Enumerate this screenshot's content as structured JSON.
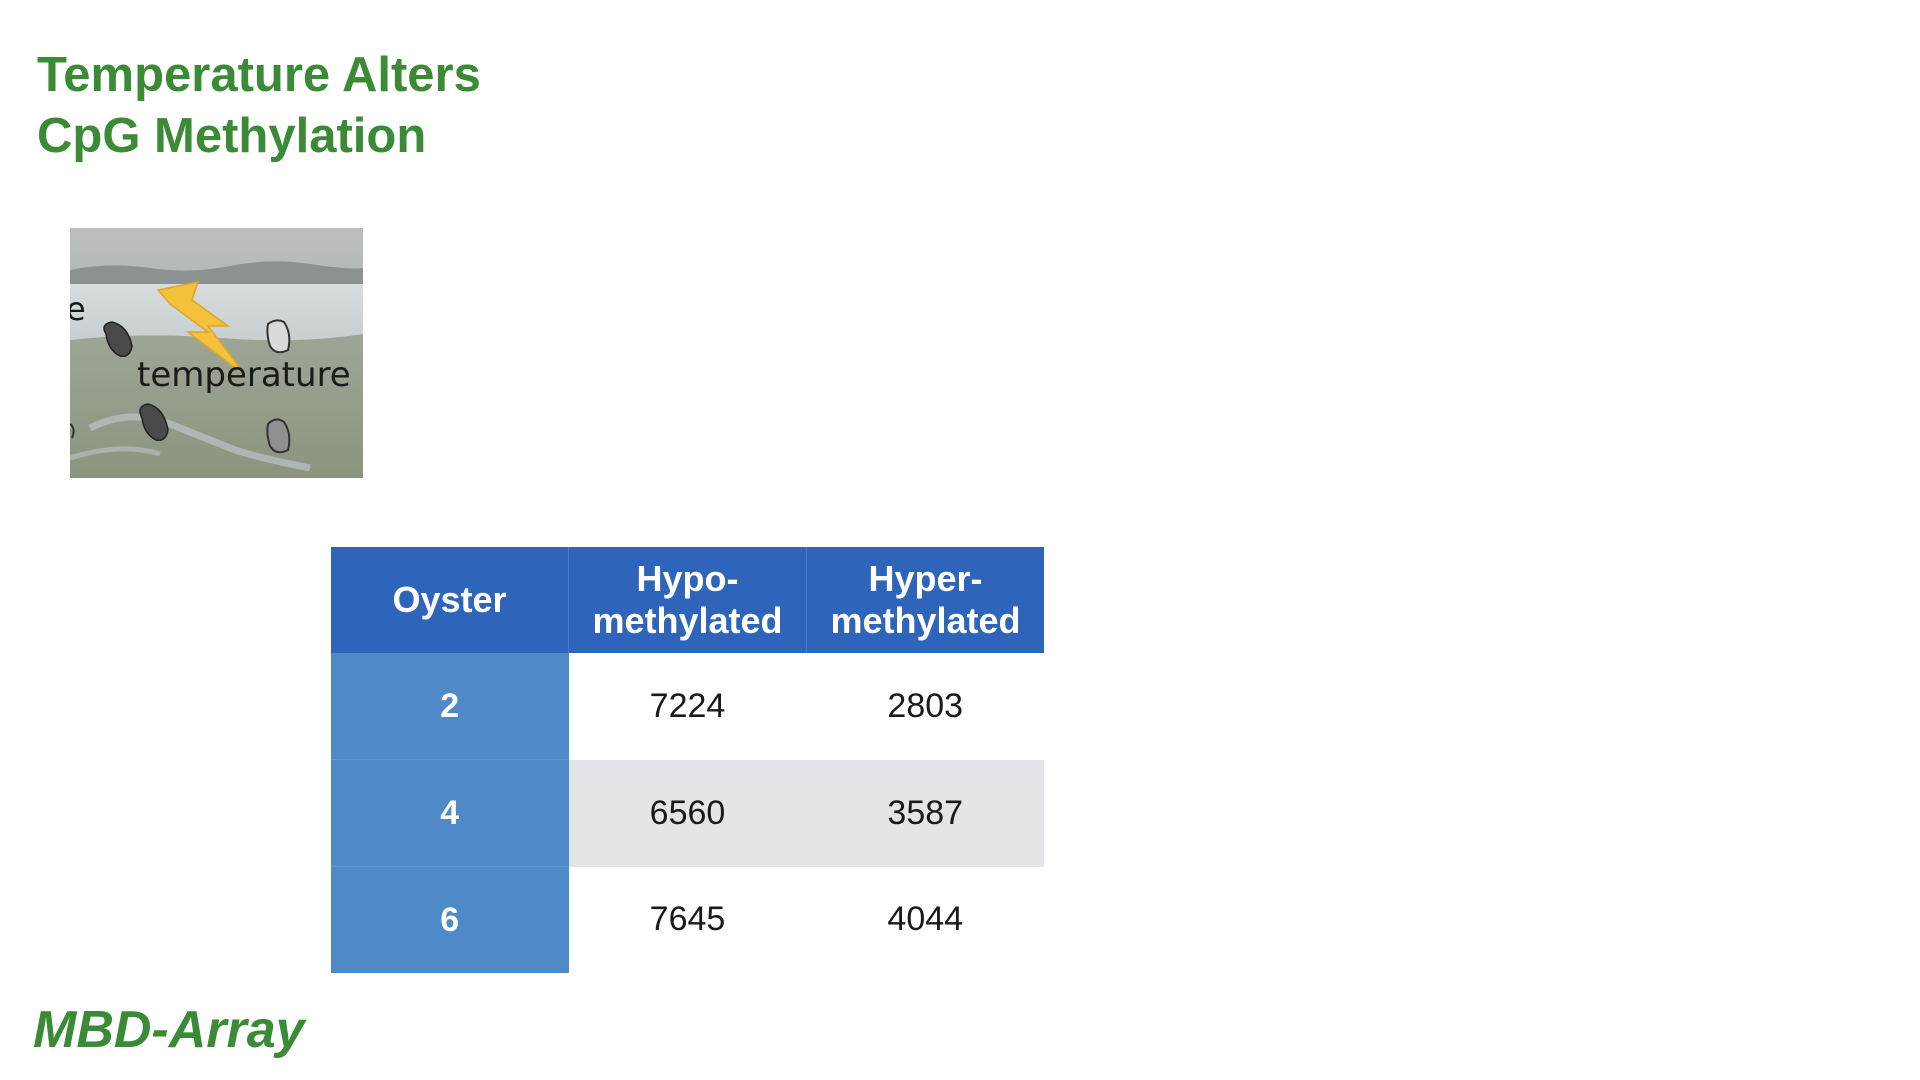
{
  "slide": {
    "title_line1": "Temperature Alters",
    "title_line2": "CpG Methylation",
    "footer": "MBD-Array"
  },
  "photo": {
    "label": "temperature",
    "fragment_letter": "e"
  },
  "table": {
    "headers": {
      "oyster": "Oyster",
      "hypo_line1": "Hypo-",
      "hypo_line2": "methylated",
      "hyper_line1": "Hyper-",
      "hyper_line2": "methylated"
    },
    "rows": [
      {
        "oyster": "2",
        "hypo": "7224",
        "hyper": "2803"
      },
      {
        "oyster": "4",
        "hypo": "6560",
        "hyper": "3587"
      },
      {
        "oyster": "6",
        "hypo": "7645",
        "hyper": "4044"
      }
    ]
  },
  "colors": {
    "title_green": "#3a8a36",
    "header_blue": "#2f64bb",
    "oyster_column_blue": "#4f89c8",
    "shaded_row_gray": "#e4e5e8",
    "lightning_yellow": "#f3c13a"
  }
}
